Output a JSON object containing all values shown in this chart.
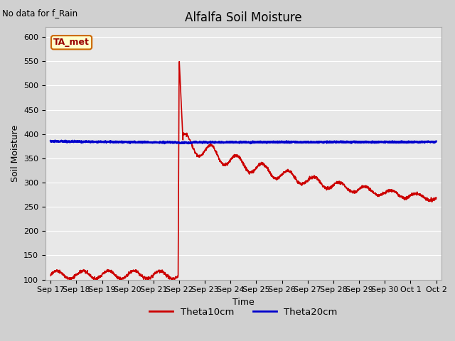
{
  "title": "Alfalfa Soil Moisture",
  "top_left_text": "No data for f_Rain",
  "xlabel": "Time",
  "ylabel": "Soil Moisture",
  "ylim": [
    100,
    620
  ],
  "yticks": [
    100,
    150,
    200,
    250,
    300,
    350,
    400,
    450,
    500,
    550,
    600
  ],
  "xtick_labels": [
    "Sep 17",
    "Sep 18",
    "Sep 19",
    "Sep 20",
    "Sep 21",
    "Sep 22",
    "Sep 23",
    "Sep 24",
    "Sep 25",
    "Sep 26",
    "Sep 27",
    "Sep 28",
    "Sep 29",
    "Sep 30",
    "Oct 1",
    "Oct 2"
  ],
  "legend_labels": [
    "Theta10cm",
    "Theta20cm"
  ],
  "legend_colors": [
    "#cc0000",
    "#0000cc"
  ],
  "annotation_label": "TA_met",
  "annotation_bg": "#ffffcc",
  "annotation_border": "#cc6600",
  "plot_bg": "#e8e8e8",
  "fig_bg": "#d0d0d0",
  "grid_color": "#ffffff",
  "theta10_color": "#cc0000",
  "theta20_color": "#0000cc",
  "title_fontsize": 12,
  "axis_fontsize": 9,
  "tick_fontsize": 8
}
